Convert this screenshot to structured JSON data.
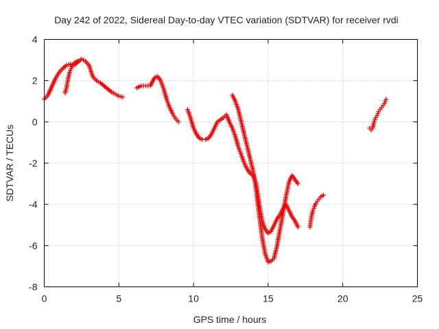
{
  "chart_data": {
    "type": "scatter",
    "title": "Day 242 of 2022, Sidereal Day-to-day VTEC variation (SDTVAR) for receiver rvdi",
    "xlabel": "GPS time / hours",
    "ylabel": "SDTVAR / TECUs",
    "xlim": [
      0,
      25
    ],
    "ylim": [
      -8,
      4
    ],
    "xticks": [
      "0",
      "5",
      "10",
      "15",
      "20",
      "25"
    ],
    "yticks": [
      "-8",
      "-6",
      "-4",
      "-2",
      "0",
      "2",
      "4"
    ],
    "grid": true,
    "marker": "+",
    "color": "#ee0000",
    "segments": [
      {
        "x": [
          0.0,
          0.25,
          0.5,
          0.75,
          1.0,
          1.25,
          1.5,
          1.75,
          2.0,
          2.25,
          2.5,
          2.75,
          3.0,
          3.25,
          3.5,
          3.75,
          4.0,
          4.25,
          4.5,
          4.75,
          5.0,
          5.25
        ],
        "y": [
          1.1,
          1.3,
          1.7,
          2.1,
          2.4,
          2.6,
          2.75,
          2.8,
          2.75,
          2.9,
          3.05,
          2.95,
          2.75,
          2.2,
          2.0,
          1.9,
          1.75,
          1.6,
          1.45,
          1.35,
          1.25,
          1.2
        ]
      },
      {
        "x": [
          1.4,
          1.5,
          1.6,
          1.7,
          1.8,
          1.9,
          2.0,
          2.1,
          2.2
        ],
        "y": [
          1.4,
          1.7,
          2.1,
          2.4,
          2.6,
          2.75,
          2.85,
          2.9,
          2.95
        ]
      },
      {
        "x": [
          6.2,
          6.5,
          6.8,
          7.1,
          7.4,
          7.6,
          7.8,
          8.0,
          8.2,
          8.4,
          8.6,
          8.8,
          9.0
        ],
        "y": [
          1.65,
          1.75,
          1.75,
          1.75,
          2.15,
          2.2,
          2.0,
          1.6,
          1.1,
          0.7,
          0.4,
          0.15,
          0.0
        ]
      },
      {
        "x": [
          9.6,
          9.8,
          10.0,
          10.2,
          10.4,
          10.6,
          10.8,
          11.0,
          11.2,
          11.4,
          11.6,
          11.8,
          12.0,
          12.2,
          12.4,
          12.6,
          12.8,
          13.0,
          13.2,
          13.4,
          13.6,
          13.8,
          14.0,
          14.2,
          14.4,
          14.6,
          14.8,
          15.0,
          15.2,
          15.4,
          15.6,
          15.8,
          16.0,
          16.2,
          16.4,
          16.6,
          16.8,
          17.0
        ],
        "y": [
          0.6,
          0.2,
          -0.3,
          -0.6,
          -0.8,
          -0.85,
          -0.85,
          -0.8,
          -0.6,
          -0.3,
          0.0,
          0.1,
          0.2,
          0.35,
          0.0,
          -0.3,
          -0.7,
          -1.2,
          -1.6,
          -2.0,
          -2.3,
          -2.5,
          -2.6,
          -3.0,
          -4.0,
          -4.8,
          -5.2,
          -5.4,
          -5.3,
          -5.0,
          -4.7,
          -4.5,
          -4.2,
          -4.0,
          -4.3,
          -4.6,
          -4.8,
          -5.1
        ]
      },
      {
        "x": [
          12.6,
          12.8,
          13.0,
          13.2,
          13.4,
          13.6,
          13.8,
          14.0,
          14.2,
          14.4,
          14.6,
          14.8,
          15.0,
          15.2,
          15.4,
          15.6,
          15.8,
          16.0,
          16.2,
          16.4,
          16.6,
          16.8,
          17.0
        ],
        "y": [
          1.3,
          1.0,
          0.6,
          0.0,
          -0.6,
          -1.2,
          -1.8,
          -2.4,
          -3.3,
          -4.5,
          -5.6,
          -6.4,
          -6.8,
          -6.75,
          -6.6,
          -6.0,
          -5.2,
          -4.4,
          -3.6,
          -2.9,
          -2.6,
          -2.8,
          -3.0
        ]
      },
      {
        "x": [
          17.8,
          17.9,
          18.0,
          18.1,
          18.2,
          18.3,
          18.4,
          18.5,
          18.6,
          18.7
        ],
        "y": [
          -5.1,
          -4.6,
          -4.3,
          -4.1,
          -3.95,
          -3.85,
          -3.75,
          -3.65,
          -3.6,
          -3.55
        ]
      },
      {
        "x": [
          21.8,
          21.9,
          22.0,
          22.1,
          22.2,
          22.3,
          22.4,
          22.5,
          22.6,
          22.7,
          22.8,
          22.9
        ],
        "y": [
          -0.3,
          -0.4,
          -0.3,
          0.0,
          0.2,
          0.3,
          0.5,
          0.6,
          0.7,
          0.8,
          0.9,
          1.1
        ]
      }
    ]
  }
}
